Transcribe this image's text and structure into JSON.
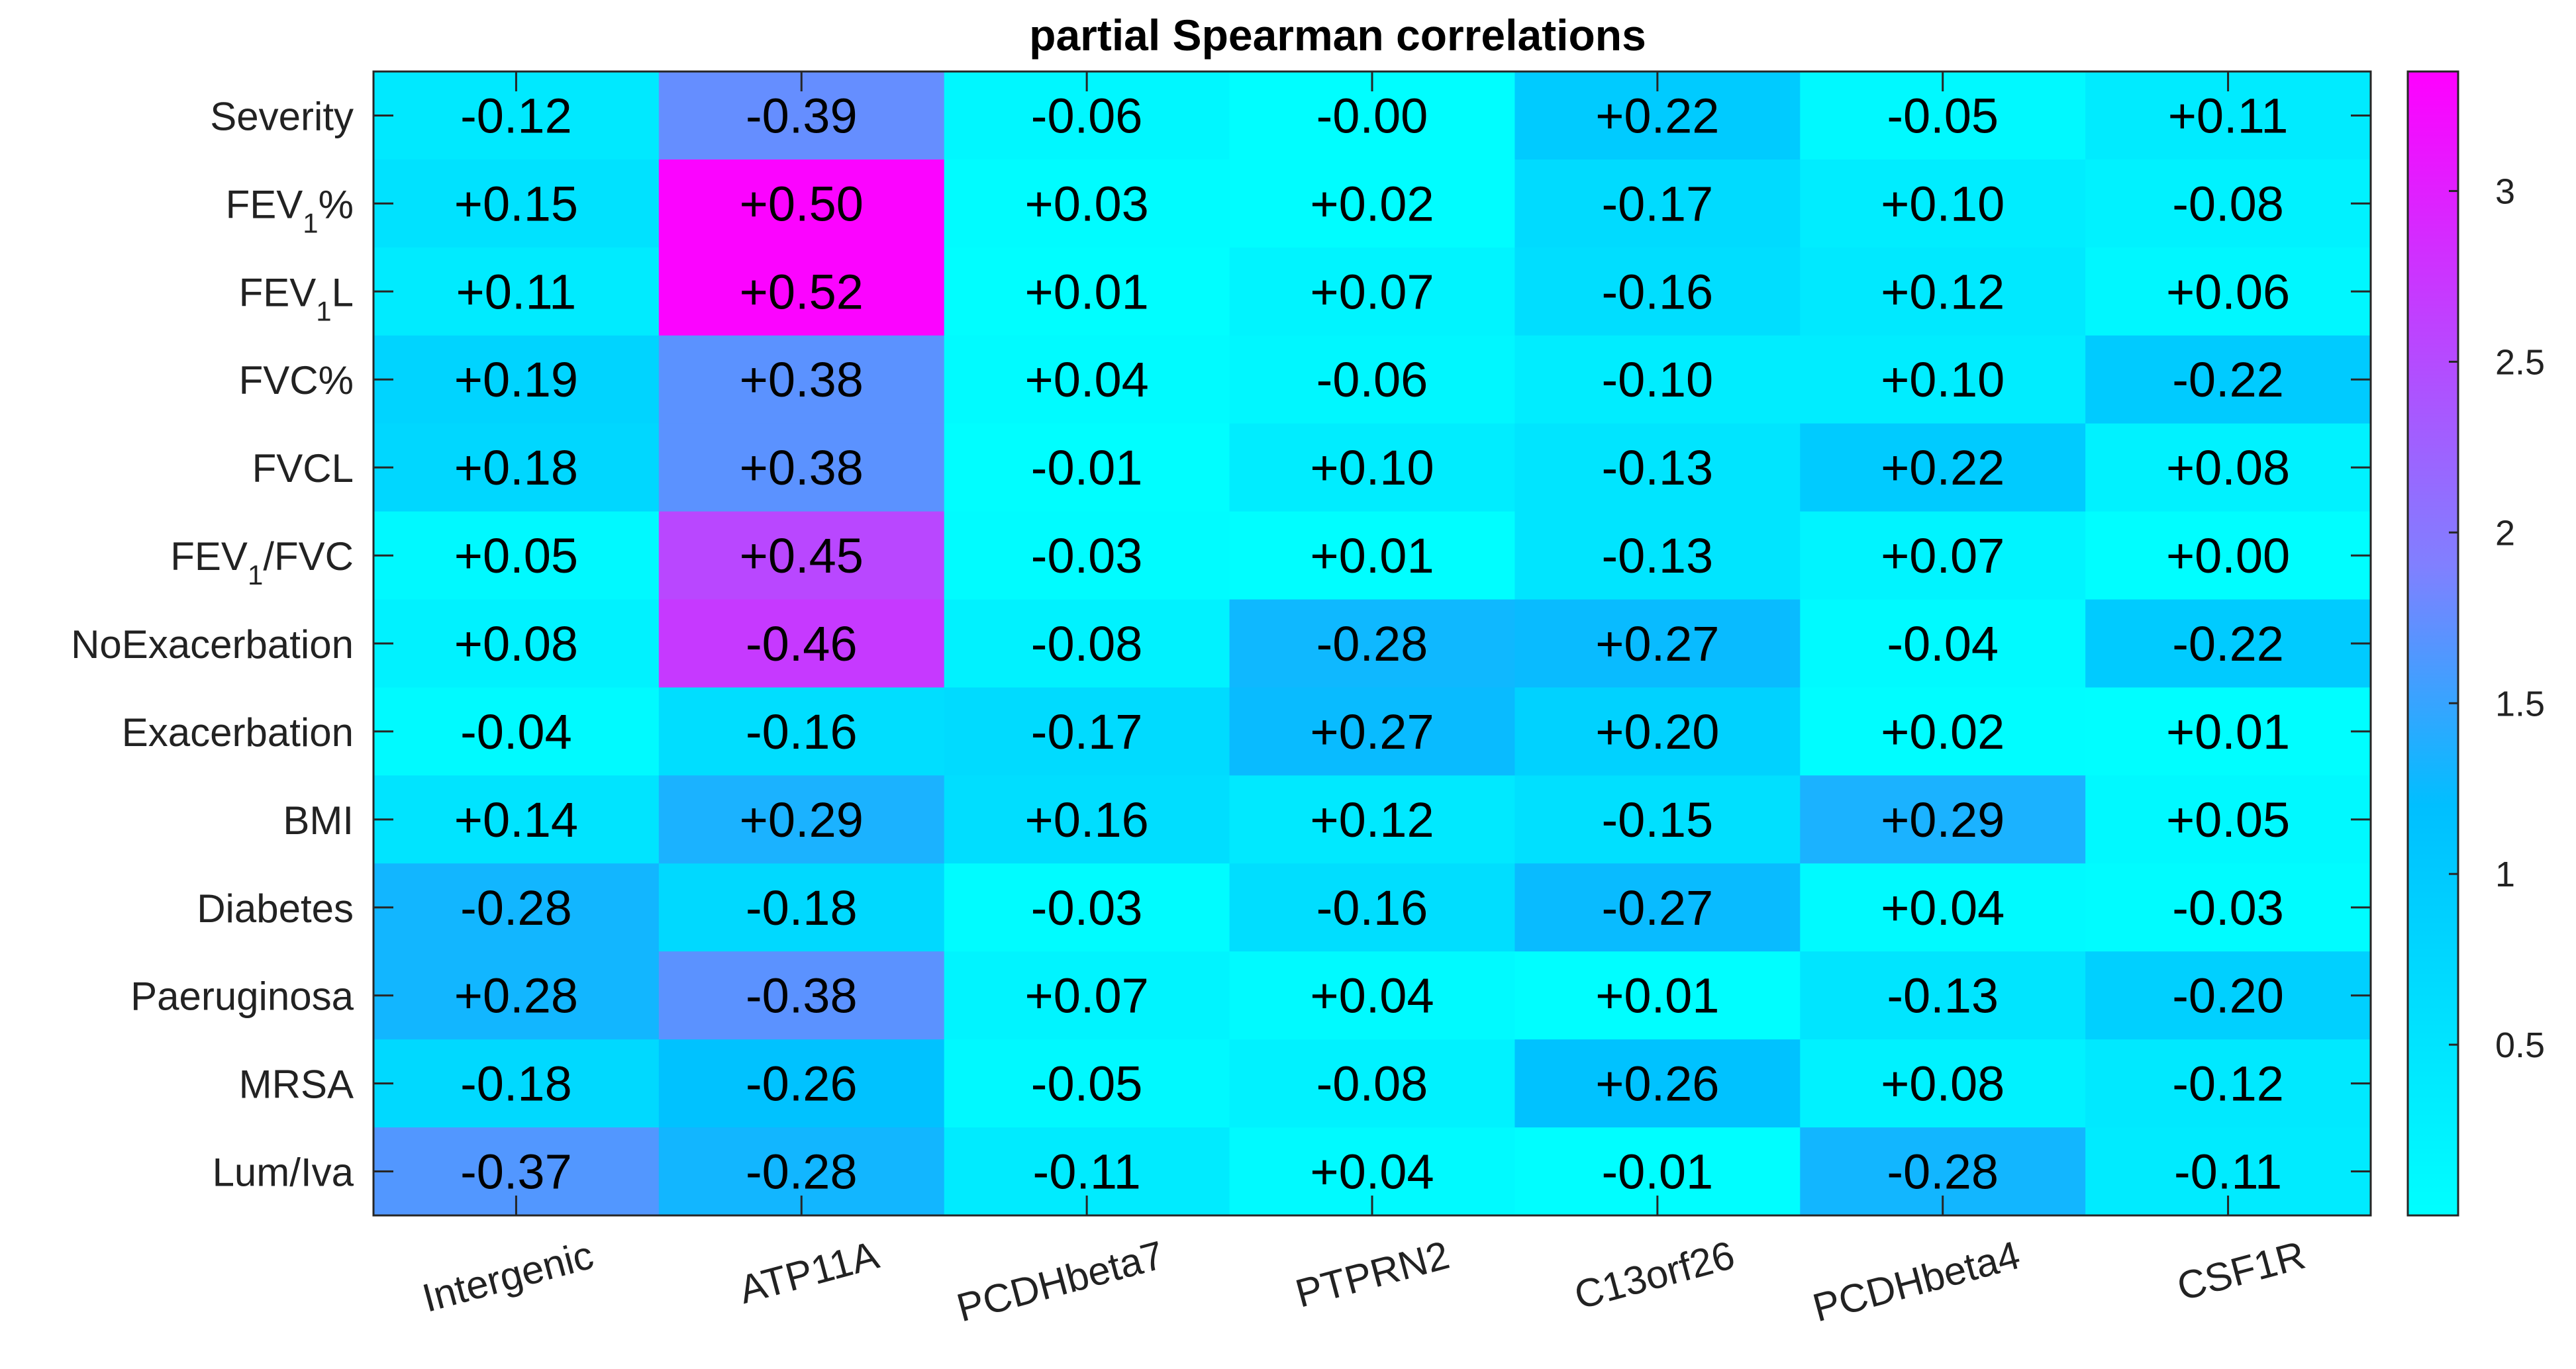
{
  "chart_data": {
    "type": "heatmap",
    "title": "partial Spearman correlations",
    "rows": [
      {
        "label": "Severity"
      },
      {
        "label": "FEV",
        "subscript": "1",
        "suffix": "%"
      },
      {
        "label": "FEV",
        "subscript": "1",
        "suffix": "L"
      },
      {
        "label": "FVC%"
      },
      {
        "label": "FVCL"
      },
      {
        "label": "FEV",
        "subscript": "1",
        "suffix": "/FVC"
      },
      {
        "label": "NoExacerbation"
      },
      {
        "label": "Exacerbation"
      },
      {
        "label": "BMI"
      },
      {
        "label": "Diabetes"
      },
      {
        "label": "Paeruginosa"
      },
      {
        "label": "MRSA"
      },
      {
        "label": "Lum/Iva"
      }
    ],
    "columns": [
      "Intergenic",
      "ATP11A",
      "PCDHbeta7",
      "PTPRN2",
      "C13orf26",
      "PCDHbeta4",
      "CSF1R"
    ],
    "cell_labels": [
      [
        "-0.12",
        "-0.39",
        "-0.06",
        "-0.00",
        "+0.22",
        "-0.05",
        "+0.11"
      ],
      [
        "+0.15",
        "+0.50",
        "+0.03",
        "+0.02",
        "-0.17",
        "+0.10",
        "-0.08"
      ],
      [
        "+0.11",
        "+0.52",
        "+0.01",
        "+0.07",
        "-0.16",
        "+0.12",
        "+0.06"
      ],
      [
        "+0.19",
        "+0.38",
        "+0.04",
        "-0.06",
        "-0.10",
        "+0.10",
        "-0.22"
      ],
      [
        "+0.18",
        "+0.38",
        "-0.01",
        "+0.10",
        "-0.13",
        "+0.22",
        "+0.08"
      ],
      [
        "+0.05",
        "+0.45",
        "-0.03",
        "+0.01",
        "-0.13",
        "+0.07",
        "+0.00"
      ],
      [
        "+0.08",
        "-0.46",
        "-0.08",
        "-0.28",
        "+0.27",
        "-0.04",
        "-0.22"
      ],
      [
        "-0.04",
        "-0.16",
        "-0.17",
        "+0.27",
        "+0.20",
        "+0.02",
        "+0.01"
      ],
      [
        "+0.14",
        "+0.29",
        "+0.16",
        "+0.12",
        "-0.15",
        "+0.29",
        "+0.05"
      ],
      [
        "-0.28",
        "-0.18",
        "-0.03",
        "-0.16",
        "-0.27",
        "+0.04",
        "-0.03"
      ],
      [
        "+0.28",
        "-0.38",
        "+0.07",
        "+0.04",
        "+0.01",
        "-0.13",
        "-0.20"
      ],
      [
        "-0.18",
        "-0.26",
        "-0.05",
        "-0.08",
        "+0.26",
        "+0.08",
        "-0.12"
      ],
      [
        "-0.37",
        "-0.28",
        "-0.11",
        "+0.04",
        "-0.01",
        "-0.28",
        "-0.11"
      ]
    ],
    "color_values": [
      [
        0.42,
        1.75,
        0.15,
        0.02,
        0.98,
        0.12,
        0.38
      ],
      [
        0.55,
        3.3,
        0.06,
        0.04,
        0.68,
        0.33,
        0.24
      ],
      [
        0.38,
        3.3,
        0.02,
        0.2,
        0.62,
        0.42,
        0.15
      ],
      [
        0.8,
        1.7,
        0.08,
        0.15,
        0.33,
        0.33,
        0.98
      ],
      [
        0.75,
        1.7,
        0.02,
        0.33,
        0.48,
        0.98,
        0.24
      ],
      [
        0.12,
        2.55,
        0.06,
        0.02,
        0.48,
        0.2,
        0.01
      ],
      [
        0.24,
        2.7,
        0.24,
        1.28,
        1.25,
        0.1,
        0.98
      ],
      [
        0.1,
        0.62,
        0.68,
        1.25,
        0.85,
        0.04,
        0.02
      ],
      [
        0.5,
        1.35,
        0.62,
        0.42,
        0.58,
        1.35,
        0.12
      ],
      [
        1.3,
        0.72,
        0.06,
        0.62,
        1.25,
        0.1,
        0.06
      ],
      [
        1.3,
        1.7,
        0.2,
        0.1,
        0.02,
        0.48,
        0.88
      ],
      [
        0.72,
        1.15,
        0.12,
        0.24,
        1.15,
        0.24,
        0.42
      ],
      [
        1.65,
        1.3,
        0.38,
        0.1,
        0.02,
        1.3,
        0.38
      ]
    ],
    "colorbar": {
      "min": 0.0,
      "max": 3.35,
      "ticks": [
        0.5,
        1,
        1.5,
        2,
        2.5,
        3
      ],
      "tick_labels": [
        "0.5",
        "1",
        "1.5",
        "2",
        "2.5",
        "3"
      ],
      "colors": [
        "#00ffff",
        "#00bfff",
        "#8080ff",
        "#ff00ff"
      ],
      "stops": [
        0.0,
        1.2,
        1.9,
        3.35
      ]
    },
    "grid": false,
    "legend": "colorbar-right"
  }
}
